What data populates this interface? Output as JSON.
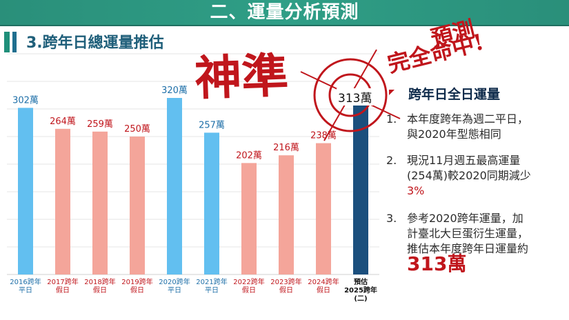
{
  "header": {
    "title": "二、運量分析預測",
    "subtitle": "3.跨年日總運量推估"
  },
  "stamps": {
    "big": "神準",
    "small_line1": "預測",
    "small_line2": "完全命中!"
  },
  "panel": {
    "title": "跨年日全日運量",
    "items": [
      {
        "num": "1.",
        "lines": [
          "本年度跨年為週二平日，",
          "與2020年型態相同"
        ]
      },
      {
        "num": "2.",
        "lines": [
          "現況11月週五最高運量",
          "(254萬)較2020同期減少"
        ],
        "highlight": "3%"
      },
      {
        "num": "3.",
        "lines": [
          "參考2020跨年運量，加",
          "計臺北大巨蛋衍生運量，",
          "推估本年度跨年日運量約"
        ],
        "highlight": "313萬"
      }
    ]
  },
  "colors": {
    "weekday": "#62bff0",
    "holiday": "#f4a59a",
    "forecast": "#1b4f7d",
    "label_weekday": "#1e6fa8",
    "label_holiday": "#c0161c",
    "label_forecast": "#111111",
    "stamp_red": "#c0161c"
  },
  "chart_data": {
    "type": "bar",
    "categories": [
      [
        "2016跨年",
        "平日"
      ],
      [
        "2017跨年",
        "假日"
      ],
      [
        "2018跨年",
        "假日"
      ],
      [
        "2019跨年",
        "假日"
      ],
      [
        "2020跨年",
        "平日"
      ],
      [
        "2021跨年",
        "平日"
      ],
      [
        "2022跨年",
        "假日"
      ],
      [
        "2023跨年",
        "假日"
      ],
      [
        "2024跨年",
        "假日"
      ],
      [
        "預估",
        "2025跨年",
        "(二)"
      ]
    ],
    "values": [
      302,
      264,
      259,
      250,
      320,
      257,
      202,
      216,
      238,
      313
    ],
    "labels": [
      "302萬",
      "264萬",
      "259萬",
      "250萬",
      "320萬",
      "257萬",
      "202萬",
      "216萬",
      "238萬",
      "313萬"
    ],
    "kinds": [
      "weekday",
      "holiday",
      "holiday",
      "holiday",
      "weekday",
      "weekday",
      "holiday",
      "holiday",
      "holiday",
      "forecast"
    ],
    "unit": "萬",
    "ylim": [
      0,
      400
    ],
    "grid": true,
    "legend": "none"
  }
}
